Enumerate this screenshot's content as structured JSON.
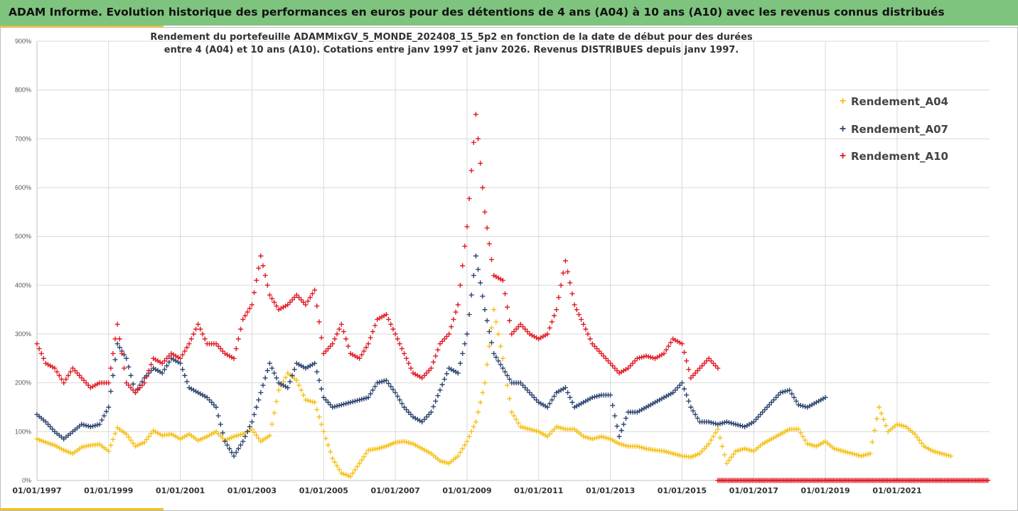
{
  "banner": {
    "title": "ADAM Informe. Evolution historique des performances en euros pour des détentions de 4 ans (A04) à 10 ans (A10) avec les revenus connus distribués"
  },
  "colors": {
    "banner_bg": "#7ec47e",
    "accent": "#f2c21a",
    "A04": "#f5c018",
    "A07": "#2c4470",
    "A10": "#e01b24"
  },
  "chart_data": {
    "type": "scatter",
    "title_line1": "Rendement du portefeuille ADAMMixGV_5_MONDE_202408_15_5p2 en fonction de la date de début pour des durées",
    "title_line2": "entre 4 (A04) et 10 ans (A10). Cotations entre janv 1997 et janv 2026. Revenus DISTRIBUES depuis janv 1997.",
    "y_ticks": [
      "0%",
      "100%",
      "200%",
      "300%",
      "400%",
      "500%",
      "600%",
      "700%",
      "800%",
      "900%"
    ],
    "ylim": [
      0,
      9
    ],
    "x_ticks": [
      "01/01/1997",
      "01/01/1999",
      "01/01/2001",
      "01/01/2003",
      "01/01/2005",
      "01/01/2007",
      "01/01/2009",
      "01/01/2011",
      "01/01/2013",
      "01/01/2015",
      "01/01/2017",
      "01/01/2019",
      "01/01/2021"
    ],
    "xlim": [
      "1997-01-01",
      "2023-08-01"
    ],
    "grid": true,
    "legend_position": "top-right",
    "marker": "+",
    "series": [
      {
        "name": "Rendement_A04",
        "color": "#f5c018",
        "x": [
          "1997-01-01",
          "1997-04-01",
          "1997-07-01",
          "1997-10-01",
          "1998-01-01",
          "1998-04-01",
          "1998-07-01",
          "1998-10-01",
          "1999-01-01",
          "1999-04-01",
          "1999-07-01",
          "1999-10-01",
          "2000-01-01",
          "2000-04-01",
          "2000-07-01",
          "2000-10-01",
          "2001-01-01",
          "2001-04-01",
          "2001-07-01",
          "2001-10-01",
          "2002-01-01",
          "2002-04-01",
          "2002-07-01",
          "2002-10-01",
          "2003-01-01",
          "2003-04-01",
          "2003-07-01",
          "2003-10-01",
          "2004-01-01",
          "2004-04-01",
          "2004-07-01",
          "2004-10-01",
          "2005-01-01",
          "2005-04-01",
          "2005-07-01",
          "2005-10-01",
          "2006-01-01",
          "2006-04-01",
          "2006-07-01",
          "2006-10-01",
          "2007-01-01",
          "2007-04-01",
          "2007-07-01",
          "2007-10-01",
          "2008-01-01",
          "2008-04-01",
          "2008-07-01",
          "2008-10-01",
          "2009-01-01",
          "2009-04-01",
          "2009-07-01",
          "2009-10-01",
          "2010-01-01",
          "2010-04-01",
          "2010-07-01",
          "2010-10-01",
          "2011-01-01",
          "2011-04-01",
          "2011-07-01",
          "2011-10-01",
          "2012-01-01",
          "2012-04-01",
          "2012-07-01",
          "2012-10-01",
          "2013-01-01",
          "2013-04-01",
          "2013-07-01",
          "2013-10-01",
          "2014-01-01",
          "2014-04-01",
          "2014-07-01",
          "2014-10-01",
          "2015-01-01",
          "2015-04-01",
          "2015-07-01",
          "2015-10-01",
          "2016-01-01",
          "2016-04-01",
          "2016-07-01",
          "2016-10-01",
          "2017-01-01",
          "2017-04-01",
          "2017-07-01",
          "2017-10-01",
          "2018-01-01",
          "2018-04-01",
          "2018-07-01",
          "2018-10-01",
          "2019-01-01",
          "2019-04-01",
          "2019-07-01",
          "2019-10-01",
          "2020-01-01",
          "2020-04-01",
          "2020-07-01",
          "2020-10-01",
          "2021-01-01",
          "2021-04-01",
          "2021-07-01",
          "2021-10-01",
          "2022-01-01",
          "2022-04-01",
          "2022-07-01"
        ],
        "y": [
          0.85,
          0.78,
          0.72,
          0.62,
          0.55,
          0.68,
          0.72,
          0.74,
          0.6,
          1.08,
          0.95,
          0.7,
          0.78,
          1.02,
          0.92,
          0.95,
          0.85,
          0.95,
          0.82,
          0.9,
          1.0,
          0.82,
          0.9,
          0.95,
          1.05,
          0.8,
          0.92,
          1.85,
          2.2,
          2.05,
          1.65,
          1.6,
          1.0,
          0.45,
          0.15,
          0.08,
          0.35,
          0.62,
          0.65,
          0.7,
          0.78,
          0.8,
          0.75,
          0.65,
          0.55,
          0.4,
          0.35,
          0.5,
          0.8,
          1.2,
          2.0,
          3.5,
          2.5,
          1.4,
          1.1,
          1.05,
          1.0,
          0.9,
          1.1,
          1.05,
          1.05,
          0.9,
          0.85,
          0.9,
          0.85,
          0.75,
          0.7,
          0.7,
          0.65,
          0.62,
          0.6,
          0.55,
          0.5,
          0.48,
          0.55,
          0.75,
          1.05,
          0.35,
          0.6,
          0.65,
          0.6,
          0.75,
          0.85,
          0.95,
          1.05,
          1.05,
          0.75,
          0.7,
          0.8,
          0.65,
          0.6,
          0.55,
          0.5,
          0.55,
          1.5,
          1.0,
          1.15,
          1.1,
          0.95,
          0.7,
          0.6,
          0.55,
          0.5
        ]
      },
      {
        "name": "Rendement_A07",
        "color": "#2c4470",
        "x": [
          "1997-01-01",
          "1997-04-01",
          "1997-07-01",
          "1997-10-01",
          "1998-01-01",
          "1998-04-01",
          "1998-07-01",
          "1998-10-01",
          "1999-01-01",
          "1999-04-01",
          "1999-07-01",
          "1999-10-01",
          "2000-01-01",
          "2000-04-01",
          "2000-07-01",
          "2000-10-01",
          "2001-01-01",
          "2001-04-01",
          "2001-07-01",
          "2001-10-01",
          "2002-01-01",
          "2002-04-01",
          "2002-07-01",
          "2002-10-01",
          "2003-01-01",
          "2003-04-01",
          "2003-07-01",
          "2003-10-01",
          "2004-01-01",
          "2004-04-01",
          "2004-07-01",
          "2004-10-01",
          "2005-01-01",
          "2005-04-01",
          "2005-07-01",
          "2005-10-01",
          "2006-01-01",
          "2006-04-01",
          "2006-07-01",
          "2006-10-01",
          "2007-01-01",
          "2007-04-01",
          "2007-07-01",
          "2007-10-01",
          "2008-01-01",
          "2008-04-01",
          "2008-07-01",
          "2008-10-01",
          "2009-01-01",
          "2009-04-01",
          "2009-07-01",
          "2009-10-01",
          "2010-01-01",
          "2010-04-01",
          "2010-07-01",
          "2010-10-01",
          "2011-01-01",
          "2011-04-01",
          "2011-07-01",
          "2011-10-01",
          "2012-01-01",
          "2012-04-01",
          "2012-07-01",
          "2012-10-01",
          "2013-01-01",
          "2013-04-01",
          "2013-07-01",
          "2013-10-01",
          "2014-01-01",
          "2014-04-01",
          "2014-07-01",
          "2014-10-01",
          "2015-01-01",
          "2015-04-01",
          "2015-07-01",
          "2015-10-01",
          "2016-01-01",
          "2016-04-01",
          "2016-07-01",
          "2016-10-01",
          "2017-01-01",
          "2017-04-01",
          "2017-07-01",
          "2017-10-01",
          "2018-01-01",
          "2018-04-01",
          "2018-07-01",
          "2018-10-01",
          "2019-01-01"
        ],
        "y": [
          1.35,
          1.2,
          1.0,
          0.85,
          1.0,
          1.15,
          1.1,
          1.15,
          1.5,
          2.8,
          2.5,
          1.8,
          2.1,
          2.3,
          2.2,
          2.5,
          2.4,
          1.9,
          1.8,
          1.7,
          1.5,
          0.8,
          0.5,
          0.8,
          1.2,
          1.8,
          2.4,
          2.0,
          1.9,
          2.4,
          2.3,
          2.4,
          1.7,
          1.5,
          1.55,
          1.6,
          1.65,
          1.7,
          2.0,
          2.05,
          1.8,
          1.5,
          1.3,
          1.2,
          1.4,
          1.85,
          2.3,
          2.2,
          3.0,
          4.6,
          3.5,
          2.6,
          2.3,
          2.0,
          2.0,
          1.8,
          1.6,
          1.5,
          1.8,
          1.9,
          1.5,
          1.6,
          1.7,
          1.75,
          1.75,
          0.9,
          1.4,
          1.4,
          1.5,
          1.6,
          1.7,
          1.8,
          2.0,
          1.5,
          1.2,
          1.2,
          1.15,
          1.2,
          1.15,
          1.1,
          1.2,
          1.4,
          1.6,
          1.8,
          1.85,
          1.55,
          1.5,
          1.6,
          1.7
        ]
      },
      {
        "name": "Rendement_A10",
        "color": "#e01b24",
        "x": [
          "1997-01-01",
          "1997-04-01",
          "1997-07-01",
          "1997-10-01",
          "1998-01-01",
          "1998-04-01",
          "1998-07-01",
          "1998-10-01",
          "1999-01-01",
          "1999-04-01",
          "1999-07-01",
          "1999-10-01",
          "2000-01-01",
          "2000-04-01",
          "2000-07-01",
          "2000-10-01",
          "2001-01-01",
          "2001-04-01",
          "2001-07-01",
          "2001-10-01",
          "2002-01-01",
          "2002-04-01",
          "2002-07-01",
          "2002-10-01",
          "2003-01-01",
          "2003-04-01",
          "2003-07-01",
          "2003-10-01",
          "2004-01-01",
          "2004-04-01",
          "2004-07-01",
          "2004-10-01",
          "2005-01-01",
          "2005-04-01",
          "2005-07-01",
          "2005-10-01",
          "2006-01-01",
          "2006-04-01",
          "2006-07-01",
          "2006-10-01",
          "2007-01-01",
          "2007-04-01",
          "2007-07-01",
          "2007-10-01",
          "2008-01-01",
          "2008-04-01",
          "2008-07-01",
          "2008-10-01",
          "2009-01-01",
          "2009-04-01",
          "2009-07-01",
          "2009-10-01",
          "2010-01-01",
          "2010-04-01",
          "2010-07-01",
          "2010-10-01",
          "2011-01-01",
          "2011-04-01",
          "2011-07-01",
          "2011-10-01",
          "2012-01-01",
          "2012-04-01",
          "2012-07-01",
          "2012-10-01",
          "2013-01-01",
          "2013-04-01",
          "2013-07-01",
          "2013-10-01",
          "2014-01-01",
          "2014-04-01",
          "2014-07-01",
          "2014-10-01",
          "2015-01-01",
          "2015-04-01",
          "2015-07-01",
          "2015-10-01",
          "2016-01-01"
        ],
        "y": [
          2.8,
          2.4,
          2.3,
          2.0,
          2.3,
          2.1,
          1.9,
          2.0,
          2.0,
          3.2,
          2.0,
          1.8,
          2.0,
          2.5,
          2.4,
          2.6,
          2.5,
          2.8,
          3.2,
          2.8,
          2.8,
          2.6,
          2.5,
          3.3,
          3.6,
          4.6,
          3.8,
          3.5,
          3.6,
          3.8,
          3.6,
          3.9,
          2.6,
          2.8,
          3.2,
          2.6,
          2.5,
          2.8,
          3.3,
          3.4,
          3.0,
          2.6,
          2.2,
          2.1,
          2.3,
          2.8,
          3.0,
          3.6,
          5.2,
          7.5,
          5.5,
          4.2,
          4.1,
          3.0,
          3.2,
          3.0,
          2.9,
          3.0,
          3.5,
          4.5,
          3.6,
          3.2,
          2.8,
          2.6,
          2.4,
          2.2,
          2.3,
          2.5,
          2.55,
          2.5,
          2.6,
          2.9,
          2.8,
          2.1,
          2.3,
          2.5,
          2.3
        ]
      },
      {
        "name": "Rendement_A10",
        "color": "#e01b24",
        "x_range": [
          "2016-01-01",
          "2023-07-15"
        ],
        "y_constant": 0
      }
    ]
  }
}
